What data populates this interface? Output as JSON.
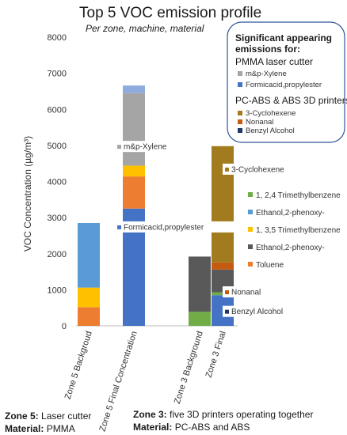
{
  "chart_data": {
    "type": "bar",
    "stacked": true,
    "title": "Top 5 VOC emission profile",
    "subtitle": "Per zone, machine, material",
    "ylabel": "VOC Concentration (µg/m³)",
    "xlabel": "",
    "ylim": [
      0,
      8000
    ],
    "yticks": [
      0,
      1000,
      2000,
      3000,
      4000,
      5000,
      6000,
      7000,
      8000
    ],
    "yticklabels": [
      "0",
      "1000",
      "2000",
      "3000",
      "4000",
      "5000",
      "6000",
      "7000",
      "8000"
    ],
    "grid": false,
    "categories": [
      "Zone 5 Backgroud",
      "Zone 5 Final Concentration",
      "Zone 3 Background",
      "Zone 3 Final"
    ],
    "series": [
      {
        "name": "",
        "color": "#4472C4",
        "values": [
          0,
          3250,
          0,
          850
        ]
      },
      {
        "name": "Toluene",
        "color": "#ED7D31",
        "values": [
          520,
          890,
          0,
          0
        ]
      },
      {
        "name": "1, 3,5 Trimethylbenzene",
        "color": "#FFC000",
        "values": [
          540,
          300,
          0,
          0
        ]
      },
      {
        "name": "Ethanol,2-phenoxy-",
        "color": "#5B9BD5",
        "values": [
          1790,
          0,
          0,
          0
        ]
      },
      {
        "name": "",
        "color": "#A5A5A5",
        "values": [
          0,
          2010,
          0,
          0
        ]
      },
      {
        "name": "",
        "color": "#8FAADC",
        "values": [
          0,
          210,
          0,
          0
        ]
      },
      {
        "name": "1, 2,4 Trimethylbenzene",
        "color": "#70AD47",
        "values": [
          0,
          0,
          390,
          80
        ]
      },
      {
        "name": "Ethanol,2-phenoxy-",
        "color": "#595959",
        "values": [
          0,
          0,
          1530,
          630
        ]
      },
      {
        "name": "",
        "color": "#C55A11",
        "values": [
          0,
          0,
          0,
          200
        ]
      },
      {
        "name": "",
        "color": "#A27B1E",
        "values": [
          0,
          0,
          0,
          3220
        ]
      }
    ],
    "legend_placement": "right",
    "bar_annotations": [
      {
        "text": "m&p-Xylene",
        "category": "Zone 5 Final Concentration",
        "color": "#A5A5A5",
        "y": 4950
      },
      {
        "text": "Formicacid,propylester",
        "category": "Zone 5 Final Concentration",
        "color": "#4472C4",
        "y": 2720
      },
      {
        "text": "3-Cyclohexene",
        "category": "Zone 3 Final",
        "color": "#A27B1E",
        "y": 4320
      },
      {
        "text": "Nonanal",
        "category": "Zone 3 Final",
        "color": "#C55A11",
        "y": 920
      },
      {
        "text": "Benzyl Alcohol",
        "category": "Zone 3 Final",
        "color": "#203864",
        "y": 380
      }
    ]
  },
  "info_box": {
    "heading_line1": "Significant appearing",
    "heading_line2": "emissions for:",
    "group1_title": "PMMA laser cutter",
    "group1_items": [
      {
        "label": "m&p-Xylene",
        "color": "#A5A5A5"
      },
      {
        "label": "Formicacid,propylester",
        "color": "#4472C4"
      }
    ],
    "group2_title": "PC-ABS & ABS 3D printers",
    "group2_items": [
      {
        "label": "3-Cyclohexene",
        "color": "#A27B1E"
      },
      {
        "label": "Nonanal",
        "color": "#C55A11"
      },
      {
        "label": "Benzyl Alcohol",
        "color": "#203864"
      }
    ]
  },
  "footer": {
    "zone5_label": "Zone 5:",
    "zone5_value": "Laser cutter",
    "material_label_left": "Material:",
    "material_value_left": "PMMA",
    "zone3_label": "Zone 3:",
    "zone3_value": "five 3D printers operating together",
    "material_label_right": "Material:",
    "material_value_right": "PC-ABS and ABS"
  }
}
